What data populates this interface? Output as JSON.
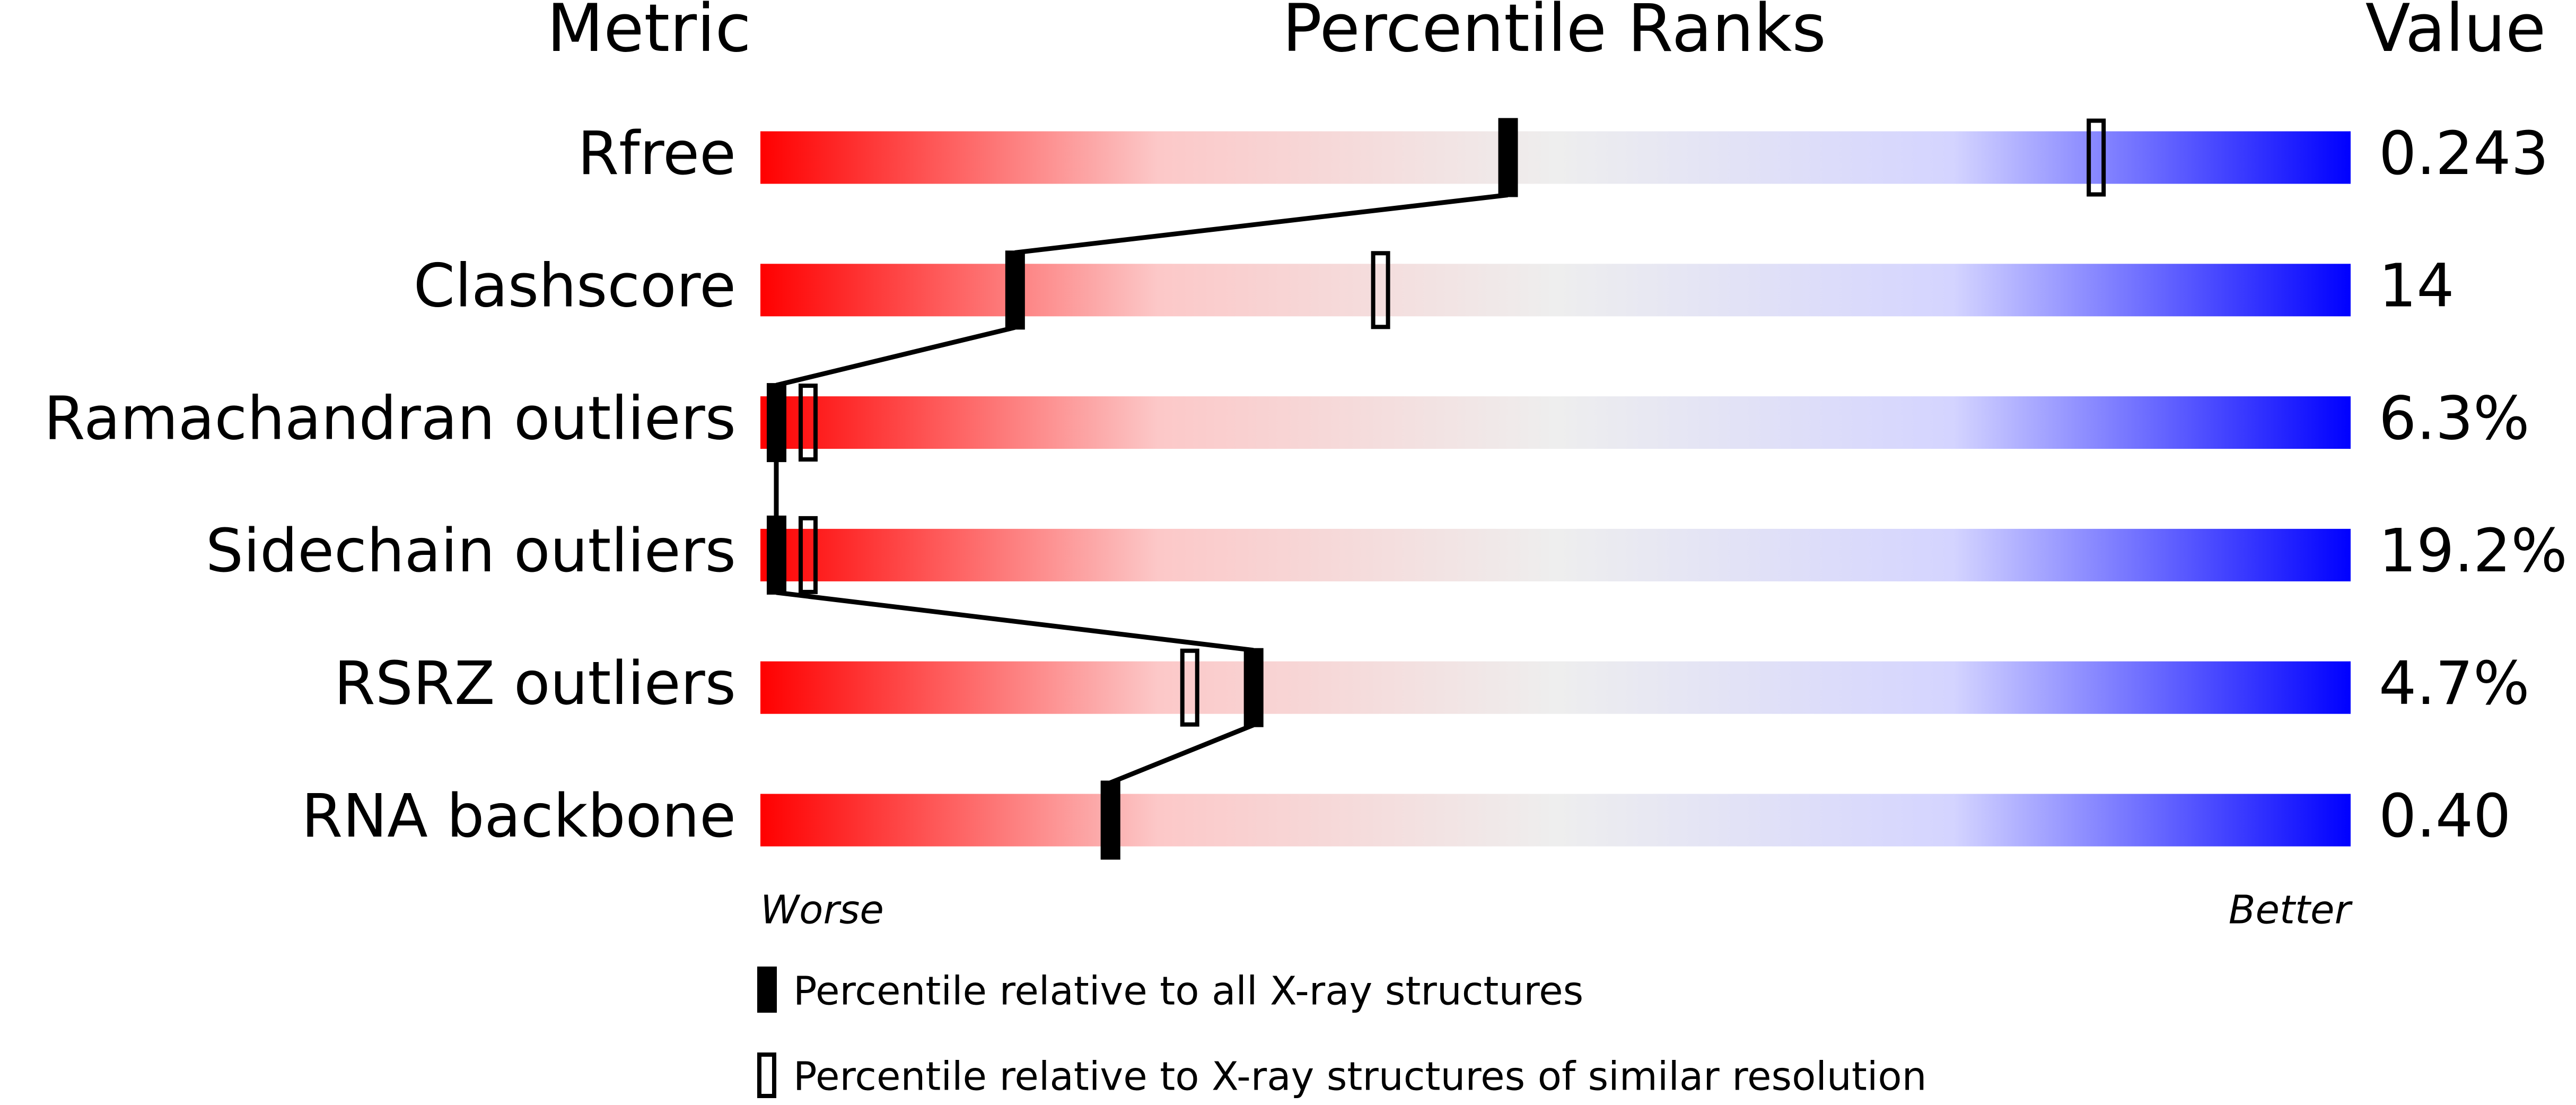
{
  "chart_data": {
    "type": "percentile",
    "title": "Percentile Ranks",
    "metric_header": "Metric",
    "value_header": "Value",
    "categories": [
      "Rfree",
      "Clashscore",
      "Ramachandran outliers",
      "Sidechain outliers",
      "RSRZ outliers",
      "RNA backbone"
    ],
    "metric_values": [
      "0.243",
      "14",
      "6.3%",
      "19.2%",
      "4.7%",
      "0.40"
    ],
    "series": [
      {
        "name": "Percentile relative to all X-ray structures",
        "style": "filled",
        "color": "#000000",
        "values": [
          47,
          16,
          1,
          1,
          31,
          22
        ]
      },
      {
        "name": "Percentile relative to X-ray structures of similar resolution",
        "style": "open",
        "color": "#000000",
        "values": [
          84,
          39,
          3,
          3,
          27,
          22
        ]
      }
    ],
    "xlim": [
      0,
      100
    ],
    "gradient": [
      "#ff0000",
      "#fcc8c8",
      "#eeeeee",
      "#d4d4ff",
      "#0000ff"
    ],
    "worse_label": "Worse",
    "better_label": "Better",
    "connect_series": 0
  }
}
